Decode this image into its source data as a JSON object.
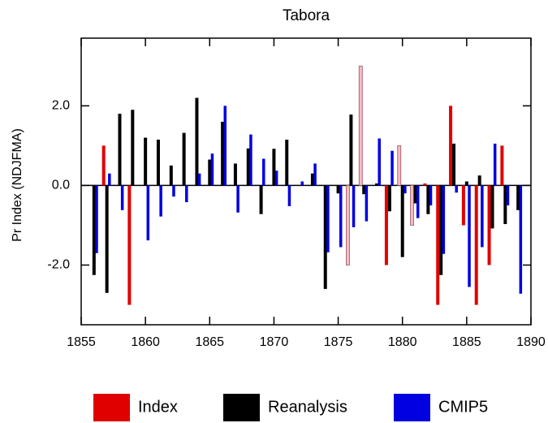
{
  "chart_data": {
    "type": "bar",
    "title": "Tabora",
    "y_label": "Pr Index (NDJFMA)",
    "x": [
      1856,
      1857,
      1858,
      1859,
      1860,
      1861,
      1862,
      1863,
      1864,
      1865,
      1866,
      1867,
      1868,
      1869,
      1870,
      1871,
      1872,
      1873,
      1874,
      1875,
      1876,
      1877,
      1878,
      1879,
      1880,
      1881,
      1882,
      1883,
      1884,
      1885,
      1886,
      1887,
      1888,
      1889
    ],
    "series": [
      {
        "name": "Index",
        "color": "#e00000",
        "colors": [
          "#e00000",
          "#e00000",
          "#e00000",
          "#e00000",
          "#e00000",
          "#e00000",
          "#e00000",
          "#e00000",
          "#e00000",
          "#e00000",
          "#e00000",
          "#e00000",
          "#e00000",
          "#e00000",
          "#e00000",
          "#e00000",
          "#e00000",
          "#e00000",
          "#e00000",
          "#e00000",
          "#f2bcc4",
          "#f2bcc4",
          "#e00000",
          "#e00000",
          "#f2bcc4",
          "#f2bcc4",
          "#e00000",
          "#e00000",
          "#e00000",
          "#e00000",
          "#e00000",
          "#e00000",
          "#e00000",
          "#e00000"
        ],
        "values": [
          null,
          1.0,
          null,
          -3.0,
          null,
          null,
          null,
          null,
          null,
          null,
          null,
          null,
          null,
          null,
          null,
          null,
          null,
          null,
          null,
          null,
          -2.0,
          3.0,
          null,
          -2.0,
          1.0,
          -1.0,
          0.05,
          -3.0,
          2.0,
          -1.0,
          -3.0,
          -2.0,
          1.0,
          null
        ]
      },
      {
        "name": "Reanalysis",
        "color": "#000000",
        "values": [
          -2.25,
          -2.7,
          1.8,
          1.9,
          1.2,
          1.15,
          0.5,
          1.32,
          2.2,
          0.65,
          1.6,
          0.55,
          0.93,
          -0.72,
          0.92,
          1.15,
          null,
          0.3,
          -2.6,
          -0.2,
          1.78,
          -0.22,
          0.05,
          -0.65,
          -1.8,
          -0.45,
          -0.72,
          -2.25,
          1.05,
          0.1,
          0.25,
          -1.08,
          -0.97,
          -0.62
        ]
      },
      {
        "name": "CMIP5",
        "color": "#0000e0",
        "values": [
          -1.7,
          0.3,
          -0.62,
          null,
          -1.38,
          -0.78,
          -0.28,
          -0.42,
          0.3,
          0.8,
          2.0,
          -0.68,
          1.28,
          0.67,
          0.37,
          -0.52,
          0.1,
          0.55,
          -1.68,
          -1.55,
          -1.05,
          -0.9,
          1.18,
          0.87,
          -0.2,
          -0.82,
          -0.5,
          -1.72,
          -0.18,
          -2.55,
          -1.55,
          1.05,
          -0.5,
          -2.72
        ]
      }
    ],
    "xlim": [
      1855,
      1890
    ],
    "xticks": [
      1855,
      1860,
      1865,
      1870,
      1875,
      1880,
      1885,
      1890
    ],
    "ylim": [
      -3.5,
      3.7
    ],
    "yticks": [
      {
        "value": -2,
        "label": "-2.0"
      },
      {
        "value": 0,
        "label": "0.0"
      },
      {
        "value": 2,
        "label": "2.0"
      }
    ]
  }
}
